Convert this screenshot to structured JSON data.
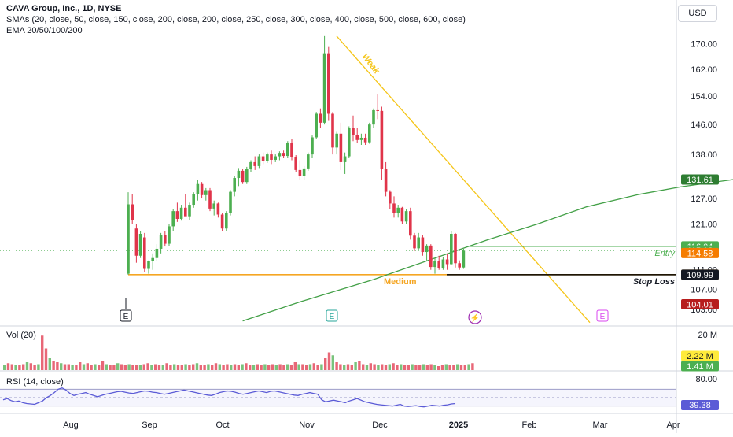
{
  "header": {
    "symbol_line": "CAVA Group, Inc., 1D, NYSE",
    "sma_line": "SMAs (20, close, 50, close, 150, close, 200, close, 200, close, 250, close, 300, close, 400, close, 500, close, 600, close)",
    "ema_line": "EMA 20/50/100/200",
    "currency": "USD"
  },
  "colors": {
    "up": "#4caf50",
    "down": "#e0344a",
    "sma": "#43a047",
    "ema": "#f57c00",
    "ema_long": "#b71c1c",
    "trendline": "#f5c518",
    "support": "#f5a623",
    "entry": "#4caf50",
    "stop": "#000000",
    "rsi": "#5b5bd6"
  },
  "annotations": {
    "weak": "Weak",
    "medium": "Medium",
    "entry": "Entry",
    "stop_loss": "Stop Loss",
    "earnings_marker": "E",
    "dividend_marker": "⚡"
  },
  "price_axis": {
    "ticks": [
      "170.00",
      "162.00",
      "154.00",
      "146.00",
      "138.00",
      "132.00",
      "127.00",
      "121.00",
      "111.00",
      "107.00",
      "103.00"
    ],
    "labels": [
      {
        "text": "131.61",
        "value": 131.61,
        "bg": "#2e7d32",
        "fg": "#ffffff"
      },
      {
        "text": "116.04",
        "value": 116.04,
        "bg": "#4caf50",
        "fg": "#ffffff"
      },
      {
        "text": "115.12",
        "value": 115.12,
        "bg": "#4caf50",
        "fg": "#ffffff"
      },
      {
        "text": "114.58",
        "value": 114.58,
        "bg": "#f57c00",
        "fg": "#ffffff"
      },
      {
        "text": "110.00",
        "value": 110.0,
        "bg": "#f5a623",
        "fg": "#131722"
      },
      {
        "text": "109.99",
        "value": 109.99,
        "bg": "#131722",
        "fg": "#ffffff"
      },
      {
        "text": "104.01",
        "value": 104.01,
        "bg": "#b71c1c",
        "fg": "#ffffff"
      }
    ]
  },
  "volume_pane": {
    "title": "Vol (20)",
    "axis_tick": "20 M",
    "labels": [
      {
        "text": "2.22 M",
        "bg": "#ffeb3b",
        "fg": "#131722"
      },
      {
        "text": "1.41 M",
        "bg": "#4caf50",
        "fg": "#ffffff"
      }
    ]
  },
  "rsi_pane": {
    "title": "RSI (14, close)",
    "axis_tick": "80.00",
    "label": {
      "text": "39.38",
      "bg": "#5b5bd6",
      "fg": "#ffffff"
    }
  },
  "time_axis": {
    "labels": [
      "Aug",
      "Sep",
      "Oct",
      "Nov",
      "Dec",
      "2025",
      "Feb",
      "Mar",
      "Apr"
    ]
  },
  "chart_data": {
    "type": "candlestick",
    "title": "CAVA Group, Inc., 1D, NYSE",
    "y_scale": "log",
    "price_range": [
      100,
      174
    ],
    "candles": [
      [
        110.2,
        128.5,
        110.0,
        125.6
      ],
      [
        125.6,
        128.0,
        121.0,
        122.0
      ],
      [
        120.0,
        121.0,
        112.5,
        114.0
      ],
      [
        114.0,
        119.5,
        113.5,
        118.8
      ],
      [
        118.0,
        119.0,
        110.5,
        111.2
      ],
      [
        111.2,
        113.0,
        110.2,
        112.8
      ],
      [
        112.8,
        114.5,
        111.0,
        113.5
      ],
      [
        113.5,
        116.5,
        112.8,
        115.5
      ],
      [
        115.5,
        119.0,
        114.5,
        118.5
      ],
      [
        118.5,
        119.5,
        116.0,
        116.6
      ],
      [
        116.6,
        121.0,
        116.0,
        120.5
      ],
      [
        120.5,
        124.5,
        119.5,
        124.0
      ],
      [
        124.0,
        126.0,
        121.5,
        122.2
      ],
      [
        122.2,
        125.5,
        121.8,
        124.8
      ],
      [
        124.8,
        128.0,
        123.0,
        122.8
      ],
      [
        122.8,
        126.0,
        122.0,
        125.5
      ],
      [
        125.5,
        128.5,
        124.8,
        128.0
      ],
      [
        128.0,
        131.5,
        126.5,
        130.5
      ],
      [
        130.5,
        131.0,
        127.0,
        127.8
      ],
      [
        127.8,
        129.5,
        126.5,
        129.0
      ],
      [
        129.0,
        129.5,
        124.0,
        124.6
      ],
      [
        124.6,
        126.5,
        123.0,
        125.8
      ],
      [
        125.8,
        126.0,
        122.5,
        123.2
      ],
      [
        123.2,
        123.5,
        119.5,
        120.0
      ],
      [
        120.0,
        124.0,
        119.5,
        123.5
      ],
      [
        123.5,
        129.0,
        123.0,
        128.6
      ],
      [
        128.6,
        132.5,
        127.5,
        132.0
      ],
      [
        132.0,
        134.5,
        130.0,
        133.8
      ],
      [
        133.8,
        134.2,
        130.5,
        131.0
      ],
      [
        131.0,
        134.8,
        130.5,
        134.2
      ],
      [
        134.2,
        136.5,
        133.5,
        136.0
      ],
      [
        136.0,
        137.5,
        134.0,
        135.0
      ],
      [
        135.0,
        138.0,
        134.5,
        137.5
      ],
      [
        137.5,
        138.5,
        135.5,
        136.2
      ],
      [
        136.2,
        138.5,
        135.8,
        138.0
      ],
      [
        138.0,
        139.0,
        135.5,
        136.6
      ],
      [
        136.6,
        138.0,
        136.0,
        137.5
      ],
      [
        137.5,
        138.8,
        136.5,
        138.4
      ],
      [
        138.4,
        139.0,
        137.0,
        137.6
      ],
      [
        137.6,
        141.5,
        137.0,
        141.0
      ],
      [
        141.0,
        142.0,
        136.5,
        137.2
      ],
      [
        137.2,
        137.8,
        133.5,
        134.0
      ],
      [
        134.0,
        136.5,
        131.5,
        132.5
      ],
      [
        132.5,
        135.0,
        131.5,
        134.4
      ],
      [
        134.4,
        138.5,
        133.8,
        138.0
      ],
      [
        138.0,
        143.0,
        137.0,
        142.5
      ],
      [
        142.5,
        149.5,
        142.0,
        149.0
      ],
      [
        149.0,
        150.5,
        145.0,
        146.5
      ],
      [
        146.5,
        172.5,
        146.0,
        167.0
      ],
      [
        167.0,
        169.0,
        147.0,
        149.0
      ],
      [
        149.0,
        149.5,
        138.0,
        139.8
      ],
      [
        139.8,
        144.0,
        138.0,
        143.5
      ],
      [
        143.5,
        146.5,
        134.0,
        136.0
      ],
      [
        136.0,
        138.5,
        133.0,
        137.5
      ],
      [
        137.5,
        145.5,
        137.0,
        145.0
      ],
      [
        145.0,
        148.5,
        141.5,
        143.2
      ],
      [
        143.2,
        145.0,
        141.0,
        141.8
      ],
      [
        141.8,
        143.5,
        140.5,
        142.4
      ],
      [
        142.4,
        143.5,
        140.5,
        141.2
      ],
      [
        141.2,
        146.5,
        140.8,
        146.0
      ],
      [
        146.0,
        150.5,
        145.0,
        150.0
      ],
      [
        150.0,
        154.5,
        147.5,
        149.8
      ],
      [
        149.8,
        151.0,
        131.5,
        134.2
      ],
      [
        134.2,
        136.0,
        127.5,
        128.6
      ],
      [
        128.6,
        129.0,
        124.5,
        125.8
      ],
      [
        125.8,
        127.5,
        122.5,
        123.6
      ],
      [
        123.6,
        125.5,
        122.5,
        124.8
      ],
      [
        124.8,
        125.0,
        121.0,
        121.6
      ],
      [
        121.6,
        124.5,
        121.0,
        124.0
      ],
      [
        124.0,
        124.8,
        117.5,
        118.4
      ],
      [
        118.4,
        119.0,
        115.0,
        115.6
      ],
      [
        115.6,
        119.0,
        115.2,
        118.0
      ],
      [
        118.0,
        118.5,
        114.0,
        114.8
      ],
      [
        114.8,
        116.5,
        113.0,
        116.2
      ],
      [
        116.2,
        116.5,
        111.0,
        111.6
      ],
      [
        111.6,
        113.5,
        110.2,
        112.8
      ],
      [
        112.8,
        114.0,
        111.0,
        111.4
      ],
      [
        111.4,
        113.8,
        111.0,
        113.2
      ],
      [
        113.2,
        114.5,
        111.0,
        112.2
      ],
      [
        112.2,
        119.5,
        112.0,
        118.8
      ],
      [
        118.8,
        119.0,
        111.5,
        112.4
      ],
      [
        112.4,
        113.0,
        111.0,
        111.5
      ],
      [
        111.5,
        115.5,
        111.2,
        115.1
      ]
    ],
    "sma50": [
      [
        28,
        100.8
      ],
      [
        42,
        104.5
      ],
      [
        60,
        109.0
      ],
      [
        75,
        113.5
      ],
      [
        88,
        117.5
      ],
      [
        100,
        121.0
      ],
      [
        112,
        125.0
      ],
      [
        125,
        128.0
      ],
      [
        135,
        129.8
      ],
      [
        145,
        131.2
      ],
      [
        155,
        132.6
      ],
      [
        168,
        133.8
      ],
      [
        180,
        135.0
      ],
      [
        190,
        135.8
      ],
      [
        198,
        136.4
      ],
      [
        203,
        136.6
      ],
      [
        210,
        136.3
      ],
      [
        218,
        135.0
      ],
      [
        225,
        133.0
      ],
      [
        233,
        131.0
      ]
    ],
    "ema_medium": [
      [
        150,
        100.8
      ],
      [
        160,
        103.5
      ],
      [
        172,
        106.2
      ],
      [
        185,
        108.6
      ],
      [
        200,
        110.6
      ],
      [
        212,
        112.0
      ],
      [
        222,
        113.2
      ],
      [
        232,
        114.0
      ],
      [
        238,
        114.58
      ]
    ],
    "ema_long": [
      [
        200,
        100.6
      ],
      [
        212,
        101.8
      ],
      [
        224,
        102.8
      ],
      [
        236,
        104.01
      ]
    ],
    "levels": {
      "entry": 116.04,
      "stop_loss": 109.99,
      "support": 110.0
    },
    "volume": [
      0.5,
      0.7,
      0.6,
      0.5,
      0.5,
      0.6,
      0.8,
      0.7,
      0.5,
      0.6,
      3.5,
      2.2,
      1.2,
      0.9,
      0.8,
      0.7,
      0.6,
      0.6,
      0.5,
      0.5,
      0.8,
      0.6,
      0.7,
      0.5,
      0.6,
      0.5,
      0.9,
      0.6,
      0.5,
      0.5,
      0.7,
      0.6,
      0.5,
      0.6,
      0.5,
      0.5,
      0.5,
      0.6,
      0.7,
      0.5,
      0.6,
      0.5,
      0.5,
      0.7,
      0.5,
      0.6,
      0.5,
      0.5,
      0.6,
      0.5,
      0.6,
      0.7,
      0.5,
      0.5,
      0.6,
      0.5,
      0.7,
      0.6,
      0.5,
      0.6,
      0.5,
      0.6,
      0.5,
      0.6,
      0.7,
      0.5,
      0.5,
      0.6,
      0.5,
      0.6,
      0.5,
      0.6,
      0.5,
      0.6,
      0.5,
      0.6,
      0.5,
      0.8,
      0.6,
      0.6,
      0.5,
      0.6,
      0.7,
      0.5,
      0.6,
      1.2,
      1.8,
      1.5,
      0.8,
      0.6,
      0.5,
      0.6,
      0.5,
      0.8,
      0.9,
      0.6,
      0.5,
      0.7,
      0.6,
      0.5,
      0.6,
      0.5,
      0.6,
      0.7,
      0.5,
      0.6,
      0.5,
      0.5,
      0.6,
      0.5,
      0.5,
      0.6,
      0.5,
      0.6,
      0.5,
      0.4,
      0.5,
      0.6,
      0.5,
      0.5,
      0.6,
      0.5,
      0.5,
      0.6,
      0.7
    ],
    "rsi": [
      45,
      48,
      43,
      40,
      42,
      38,
      36,
      35,
      34,
      38,
      42,
      50,
      55,
      62,
      70,
      73,
      68,
      60,
      55,
      58,
      60,
      62,
      58,
      55,
      52,
      55,
      58,
      60,
      62,
      64,
      65,
      63,
      61,
      60,
      62,
      64,
      66,
      65,
      63,
      62,
      60,
      58,
      60,
      62,
      64,
      66,
      68,
      66,
      64,
      62,
      60,
      58,
      56,
      55,
      58,
      62,
      64,
      66,
      65,
      63,
      60,
      58,
      60,
      62,
      64,
      66,
      64,
      62,
      65,
      66,
      64,
      62,
      60,
      58,
      56,
      55,
      58,
      60,
      62,
      60,
      58,
      45,
      40,
      42,
      44,
      42,
      40,
      38,
      42,
      45,
      48,
      44,
      40,
      38,
      36,
      34,
      33,
      32,
      31,
      30,
      32,
      34,
      30,
      29,
      30,
      31,
      29,
      28,
      30,
      32,
      31,
      30,
      32,
      33,
      35,
      36
    ]
  }
}
